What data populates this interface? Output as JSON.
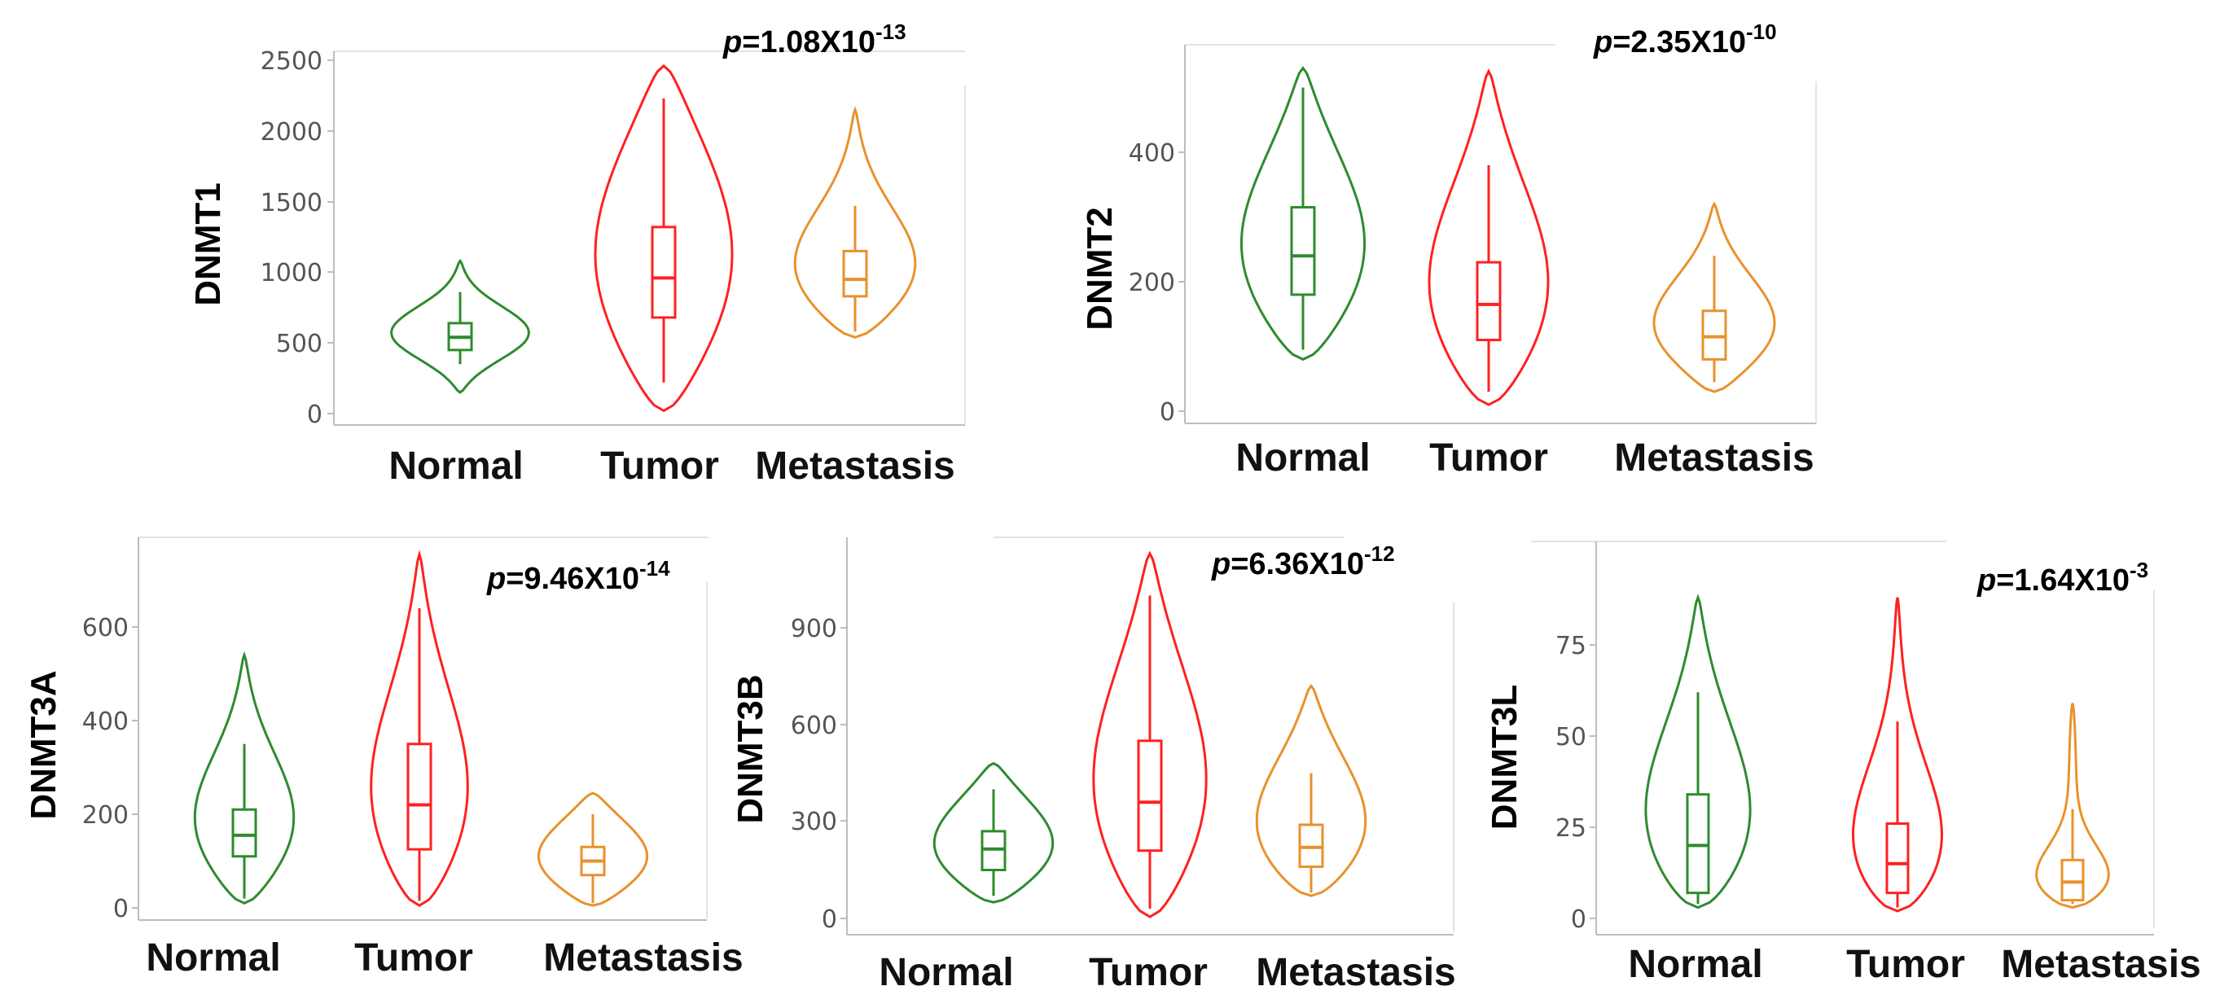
{
  "colors": {
    "normal": "#2e8b2e",
    "tumor": "#ff2020",
    "metastasis": "#e8922c",
    "axis": "#bdbdbd",
    "frame": "#e3e3e3"
  },
  "chart_data": [
    {
      "type": "violin",
      "ylabel": "DNMT1",
      "pvalue": {
        "prefix": "p",
        "value": "=1.08X10",
        "exponent": "-13"
      },
      "categories": [
        "Normal",
        "Tumor",
        "Metastasis"
      ],
      "yticks": [
        0,
        500,
        1000,
        1500,
        2000,
        2500
      ],
      "ytick_labels": [
        "0",
        "500",
        "1000",
        "1500",
        "2000",
        "2500"
      ],
      "ylim": [
        -60,
        2560
      ],
      "series": [
        {
          "name": "Normal",
          "color": "normal",
          "min": 150,
          "max": 1080,
          "q1": 450,
          "median": 540,
          "q3": 640,
          "wlo": 350,
          "whi": 860,
          "peak": 560,
          "spread": 0.22
        },
        {
          "name": "Tumor",
          "color": "tumor",
          "min": 20,
          "max": 2460,
          "q1": 680,
          "median": 960,
          "q3": 1320,
          "wlo": 220,
          "whi": 2230,
          "peak": 1000,
          "spread": 0.45
        },
        {
          "name": "Metastasis",
          "color": "metastasis",
          "min": 540,
          "max": 2150,
          "q1": 830,
          "median": 950,
          "q3": 1150,
          "wlo": 580,
          "whi": 1470,
          "peak": 900,
          "spread": 0.3
        }
      ]
    },
    {
      "type": "violin",
      "ylabel": "DNMT2",
      "pvalue": {
        "prefix": "p",
        "value": "=2.35X10",
        "exponent": "-10"
      },
      "categories": [
        "Normal",
        "Tumor",
        "Metastasis"
      ],
      "yticks": [
        0,
        200,
        400
      ],
      "ytick_labels": [
        "0",
        "200",
        "400"
      ],
      "ylim": [
        -10,
        540
      ],
      "series": [
        {
          "name": "Normal",
          "color": "normal",
          "min": 80,
          "max": 530,
          "q1": 180,
          "median": 240,
          "q3": 315,
          "wlo": 95,
          "whi": 500,
          "peak": 215,
          "spread": 0.4
        },
        {
          "name": "Tumor",
          "color": "tumor",
          "min": 10,
          "max": 525,
          "q1": 110,
          "median": 165,
          "q3": 230,
          "wlo": 30,
          "whi": 380,
          "peak": 140,
          "spread": 0.38
        },
        {
          "name": "Metastasis",
          "color": "metastasis",
          "min": 30,
          "max": 320,
          "q1": 80,
          "median": 115,
          "q3": 155,
          "wlo": 45,
          "whi": 240,
          "peak": 115,
          "spread": 0.3
        }
      ]
    },
    {
      "type": "violin",
      "ylabel": "DNMT3A",
      "pvalue": {
        "prefix": "p",
        "value": "=9.46X10",
        "exponent": "-14"
      },
      "categories": [
        "Normal",
        "Tumor",
        "Metastasis"
      ],
      "yticks": [
        0,
        200,
        400,
        600
      ],
      "ytick_labels": [
        "0",
        "200",
        "400",
        "600"
      ],
      "ylim": [
        -20,
        770
      ],
      "series": [
        {
          "name": "Normal",
          "color": "normal",
          "min": 10,
          "max": 540,
          "q1": 110,
          "median": 155,
          "q3": 210,
          "wlo": 20,
          "whi": 350,
          "peak": 140,
          "spread": 0.32
        },
        {
          "name": "Tumor",
          "color": "tumor",
          "min": 5,
          "max": 755,
          "q1": 125,
          "median": 220,
          "q3": 350,
          "wlo": 15,
          "whi": 640,
          "peak": 160,
          "spread": 0.36
        },
        {
          "name": "Metastasis",
          "color": "metastasis",
          "min": 5,
          "max": 245,
          "q1": 70,
          "median": 100,
          "q3": 130,
          "wlo": 10,
          "whi": 200,
          "peak": 95,
          "spread": 0.42
        }
      ]
    },
    {
      "type": "violin",
      "ylabel": "DNMT3B",
      "pvalue": {
        "prefix": "p",
        "value": "=6.36X10",
        "exponent": "-12"
      },
      "categories": [
        "Normal",
        "Tumor",
        "Metastasis"
      ],
      "yticks": [
        0,
        300,
        600,
        900
      ],
      "ytick_labels": [
        "0",
        "300",
        "600",
        "900"
      ],
      "ylim": [
        -30,
        1160
      ],
      "series": [
        {
          "name": "Normal",
          "color": "normal",
          "min": 50,
          "max": 480,
          "q1": 150,
          "median": 215,
          "q3": 270,
          "wlo": 70,
          "whi": 400,
          "peak": 200,
          "spread": 0.42
        },
        {
          "name": "Tumor",
          "color": "tumor",
          "min": 5,
          "max": 1130,
          "q1": 210,
          "median": 360,
          "q3": 550,
          "wlo": 30,
          "whi": 1000,
          "peak": 300,
          "spread": 0.4
        },
        {
          "name": "Metastasis",
          "color": "metastasis",
          "min": 70,
          "max": 720,
          "q1": 160,
          "median": 220,
          "q3": 290,
          "wlo": 80,
          "whi": 450,
          "peak": 210,
          "spread": 0.4
        }
      ]
    },
    {
      "type": "violin",
      "ylabel": "DNMT3L",
      "pvalue": {
        "prefix": "p",
        "value": "=1.64X10",
        "exponent": "-3"
      },
      "categories": [
        "Normal",
        "Tumor",
        "Metastasis"
      ],
      "yticks": [
        0,
        25,
        50,
        75
      ],
      "ytick_labels": [
        "0",
        "25",
        "50",
        "75"
      ],
      "ylim": [
        -2,
        90
      ],
      "series": [
        {
          "name": "Normal",
          "color": "normal",
          "min": 3,
          "max": 88,
          "q1": 7,
          "median": 20,
          "q3": 34,
          "wlo": 4,
          "whi": 62,
          "peak": 15,
          "spread": 0.38
        },
        {
          "name": "Tumor",
          "color": "tumor",
          "min": 2,
          "max": 88,
          "q1": 7,
          "median": 15,
          "q3": 26,
          "wlo": 3,
          "whi": 54,
          "peak": 8,
          "spread": 0.3
        },
        {
          "name": "Metastasis",
          "color": "metastasis",
          "min": 3,
          "max": 59,
          "q1": 5,
          "median": 10,
          "q3": 16,
          "wlo": 4,
          "whi": 30,
          "peak": 6,
          "spread": 0.18
        }
      ]
    }
  ]
}
